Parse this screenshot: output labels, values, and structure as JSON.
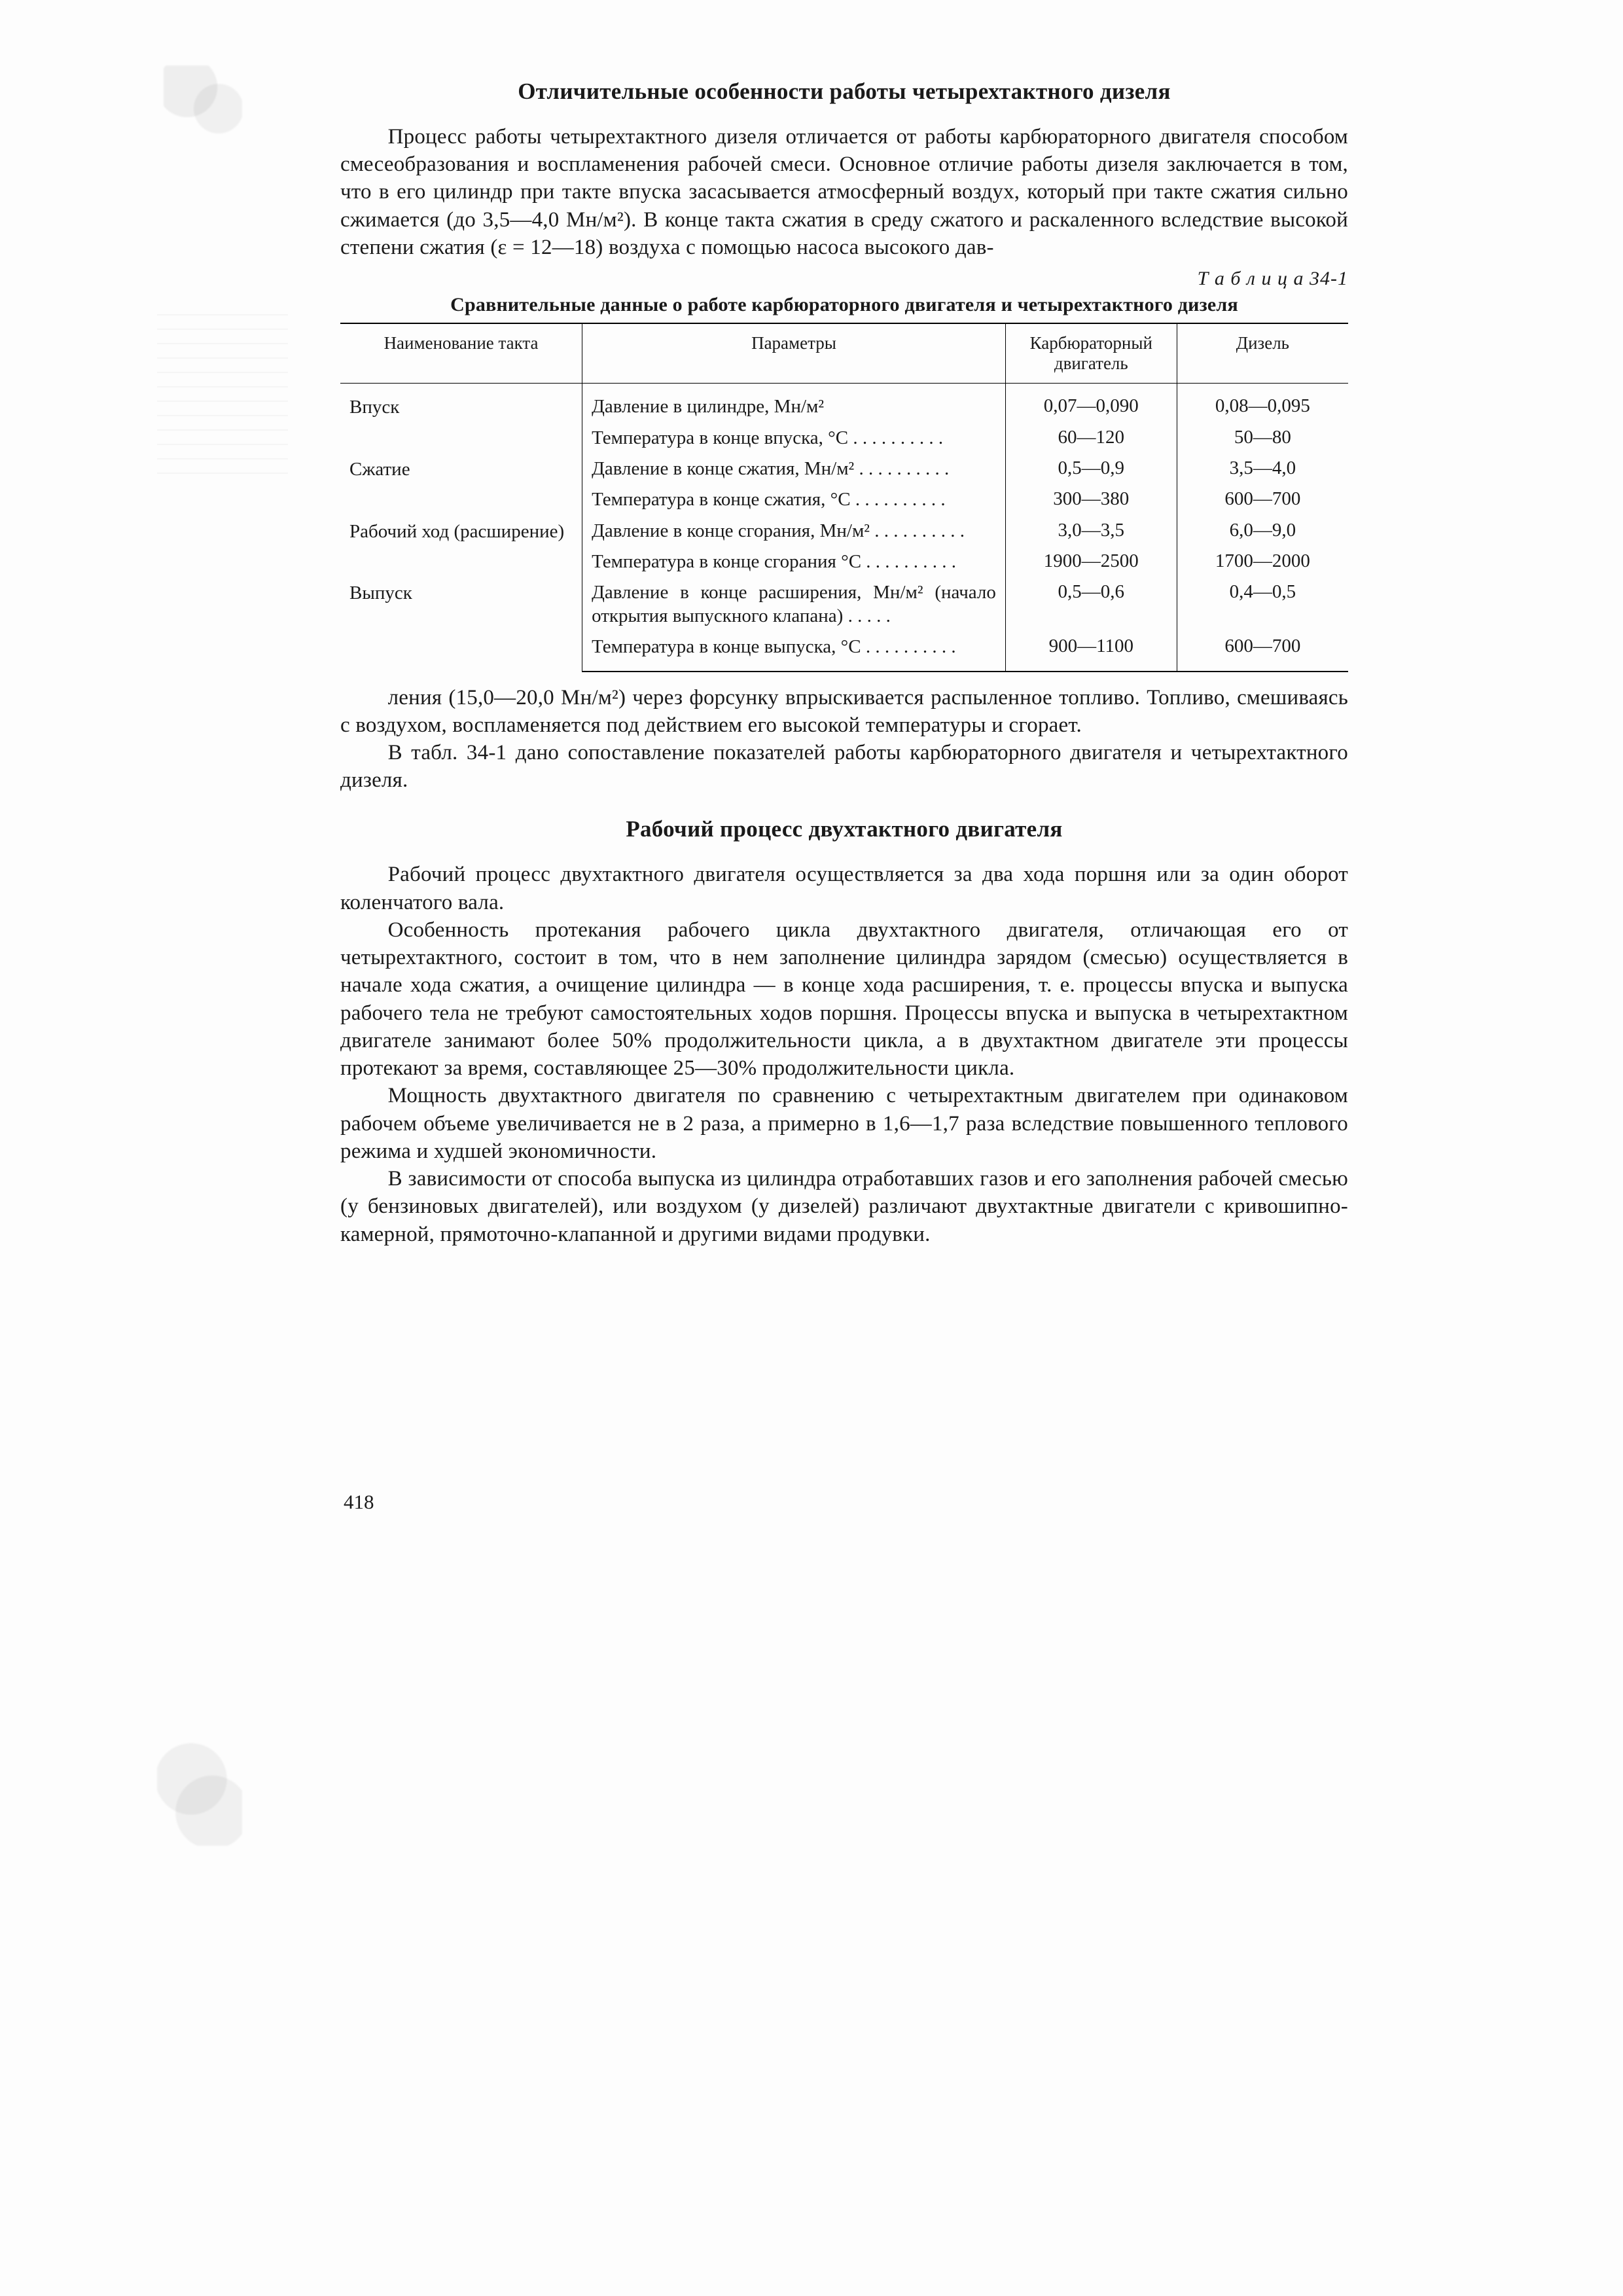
{
  "heading1": "Отличительные особенности работы четырехтактного дизеля",
  "para1": "Процесс работы четырехтактного дизеля отличается от работы карбюраторного двигателя способом смесеобразования и воспламенения рабочей смеси. Основное отличие работы дизеля заключается в том, что в его цилиндр при такте впуска засасывается атмосферный воздух, который при такте сжатия сильно сжимается (до 3,5—4,0 Мн/м²). В конце такта сжатия в среду сжатого и раскаленного вследствие высокой степени сжатия (ε = 12—18) воздуха с помощью насоса высокого дав-",
  "table_label": "Т а б л и ц а 34-1",
  "table_title": "Сравнительные данные о работе карбюраторного двигателя и четырехтактного дизеля",
  "table": {
    "headers": [
      "Наименование такта",
      "Параметры",
      "Карбюраторный двигатель",
      "Дизель"
    ],
    "groups": [
      {
        "stroke": "Впуск",
        "rows": [
          {
            "param": "Давление в цилиндре, Мн/м²",
            "carb": "0,07—0,090",
            "diesel": "0,08—0,095"
          },
          {
            "param": "Температура в конце впуска, °С . . . . . . . . . .",
            "carb": "60—120",
            "diesel": "50—80"
          }
        ]
      },
      {
        "stroke": "Сжатие",
        "rows": [
          {
            "param": "Давление в конце сжатия, Мн/м² . . . . . . . . . .",
            "carb": "0,5—0,9",
            "diesel": "3,5—4,0"
          },
          {
            "param": "Температура в конце сжатия, °С . . . . . . . . . .",
            "carb": "300—380",
            "diesel": "600—700"
          }
        ]
      },
      {
        "stroke": "Рабочий ход (расширение)",
        "rows": [
          {
            "param": "Давление в конце сгорания, Мн/м² . . . . . . . . . .",
            "carb": "3,0—3,5",
            "diesel": "6,0—9,0"
          },
          {
            "param": "Температура в конце сгорания °С . . . . . . . . . .",
            "carb": "1900—2500",
            "diesel": "1700—2000"
          }
        ]
      },
      {
        "stroke": "Выпуск",
        "rows": [
          {
            "param": "Давление в конце расширения, Мн/м² (начало открытия выпускного клапана) . . . . .",
            "carb": "0,5—0,6",
            "diesel": "0,4—0,5"
          },
          {
            "param": "Температура в конце выпуска, °С . . . . . . . . . .",
            "carb": "900—1100",
            "diesel": "600—700"
          }
        ]
      }
    ]
  },
  "para2": "ления (15,0—20,0 Мн/м²) через форсунку впрыскивается распыленное топливо. Топливо, смешиваясь с воздухом, воспламеняется под действием его высокой температуры и сгорает.",
  "para3": "В табл. 34-1 дано сопоставление показателей работы карбюраторного двигателя и четырехтактного дизеля.",
  "heading2": "Рабочий процесс двухтактного двигателя",
  "para4": "Рабочий процесс двухтактного двигателя осуществляется за два хода поршня или за один оборот коленчатого вала.",
  "para5": "Особенность протекания рабочего цикла двухтактного двигателя, отличающая его от четырехтактного, состоит в том, что в нем заполнение цилиндра зарядом (смесью) осуществляется в начале хода сжатия, а очищение цилиндра — в конце хода расширения, т. е. процессы впуска и выпуска рабочего тела не требуют самостоятельных ходов поршня. Процессы впуска и выпуска в четырехтактном двигателе занимают более 50% продолжительности цикла, а в двухтактном двигателе эти процессы протекают за время, составляющее 25—30% продолжительности цикла.",
  "para6": "Мощность двухтактного двигателя по сравнению с четырехтактным двигателем при одинаковом рабочем объеме увеличивается не в 2 раза, а примерно в 1,6—1,7 раза вследствие повышенного теплового режима и худшей экономичности.",
  "para7": "В зависимости от способа выпуска из цилиндра отработавших газов и его заполнения рабочей смесью (у бензиновых двигателей), или воздухом (у дизелей) различают двухтактные двигатели с кривошипно-камерной, прямоточно-клапанной и другими видами продувки.",
  "page_number": "418"
}
